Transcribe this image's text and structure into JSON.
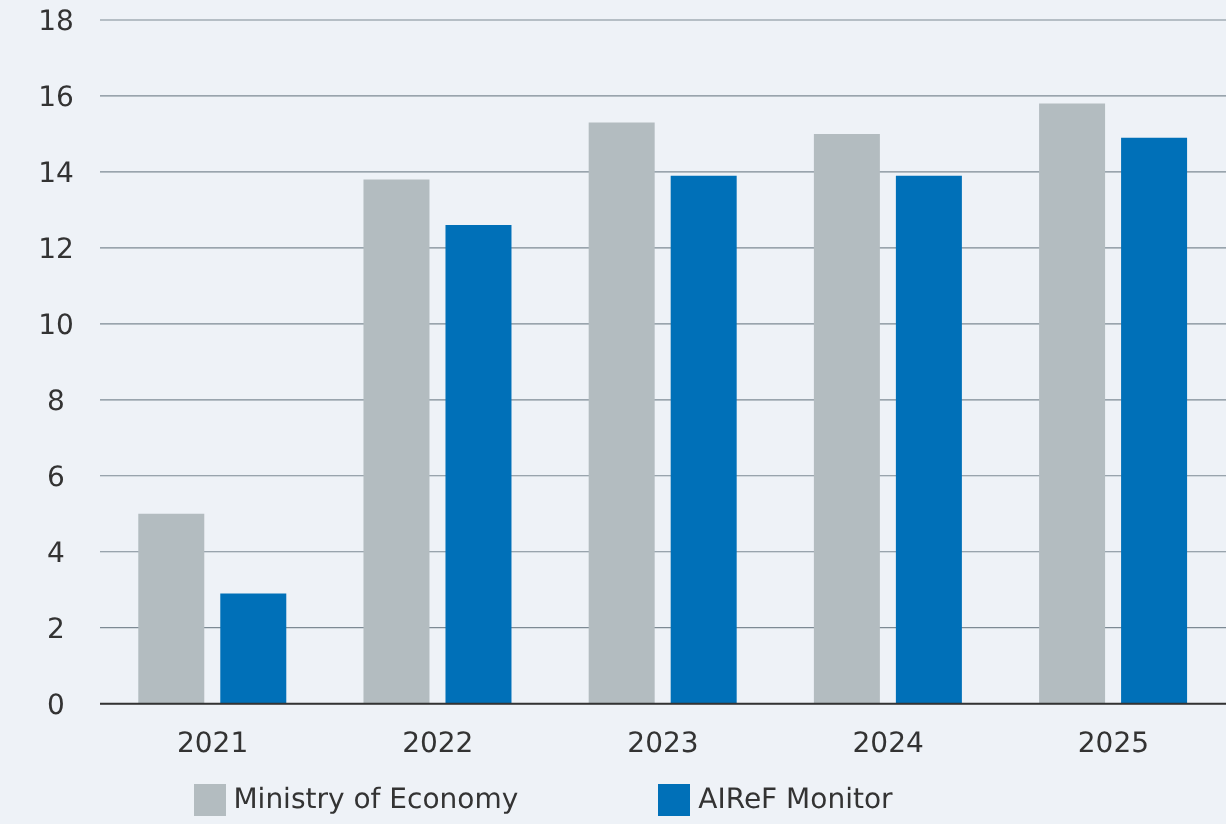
{
  "chart_data": {
    "type": "bar",
    "categories": [
      "2021",
      "2022",
      "2023",
      "2024",
      "2025"
    ],
    "series": [
      {
        "name": "Ministry of Economy",
        "color": "#b3bcc0",
        "values": [
          5.0,
          13.8,
          15.3,
          15.0,
          15.8
        ]
      },
      {
        "name": "AIReF Monitor",
        "color": "#0070b8",
        "values": [
          2.9,
          12.6,
          13.9,
          13.9,
          14.9
        ]
      }
    ],
    "ylim": [
      0,
      18
    ],
    "yticks": [
      0,
      2,
      4,
      6,
      8,
      10,
      12,
      14,
      16,
      18
    ],
    "grid": "y",
    "legend": "bottom"
  }
}
